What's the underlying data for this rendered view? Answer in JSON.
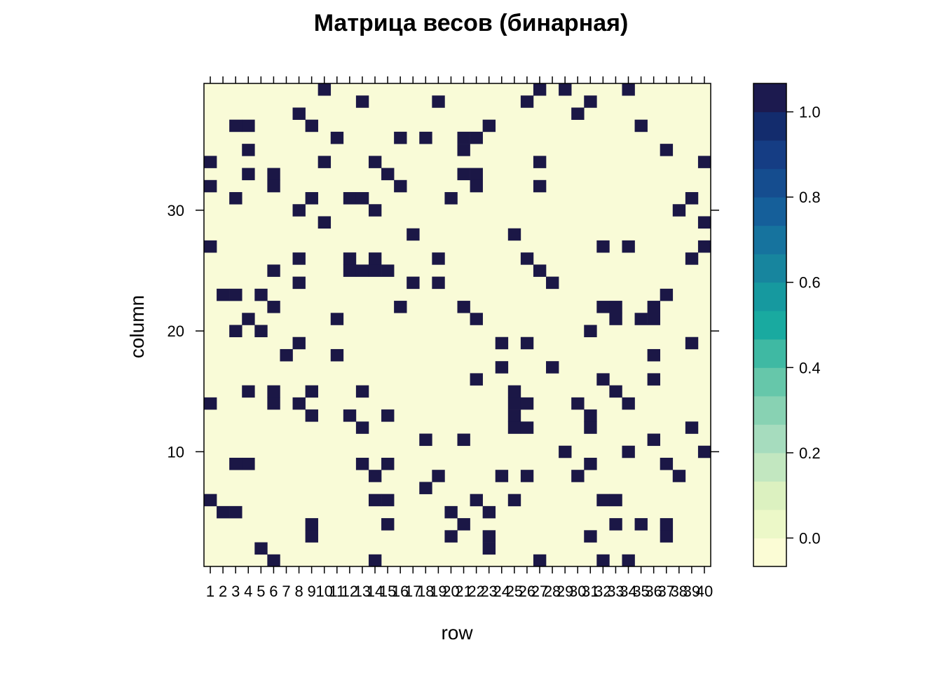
{
  "chart_data": {
    "type": "heatmap",
    "title": "Матрица весов (бинарная)",
    "xlabel": "row",
    "ylabel": "column",
    "n_rows": 40,
    "n_cols": 40,
    "x_ticks": [
      1,
      2,
      3,
      4,
      5,
      6,
      7,
      8,
      9,
      10,
      11,
      12,
      13,
      14,
      15,
      16,
      17,
      18,
      19,
      20,
      21,
      22,
      23,
      24,
      25,
      26,
      27,
      28,
      29,
      30,
      31,
      32,
      33,
      34,
      35,
      36,
      37,
      38,
      39,
      40
    ],
    "y_ticks": [
      10,
      20,
      30
    ],
    "colorbar": {
      "min": -0.0667,
      "max": 1.0667,
      "ticks": [
        0.0,
        0.2,
        0.4,
        0.6,
        0.8,
        1.0
      ],
      "tick_labels": [
        "0.0",
        "0.2",
        "0.4",
        "0.6",
        "0.8",
        "1.0"
      ],
      "colors": [
        "#fbfcd5",
        "#ecf8c8",
        "#dcf1c0",
        "#c2e7c0",
        "#a6dcbe",
        "#88d2b3",
        "#66c7aa",
        "#3fb9a3",
        "#19aaa0",
        "#16999f",
        "#17859e",
        "#16739e",
        "#155f9a",
        "#154d8f",
        "#153d84",
        "#132c6d",
        "#1c1a4f"
      ]
    },
    "cell_colors": {
      "zero": "#f9fbd7",
      "one": "#1b1746"
    },
    "nonzero_cells": [
      [
        10,
        40
      ],
      [
        27,
        40
      ],
      [
        29,
        40
      ],
      [
        34,
        40
      ],
      [
        13,
        39
      ],
      [
        19,
        39
      ],
      [
        26,
        39
      ],
      [
        31,
        39
      ],
      [
        8,
        38
      ],
      [
        30,
        38
      ],
      [
        3,
        37
      ],
      [
        4,
        37
      ],
      [
        9,
        37
      ],
      [
        23,
        37
      ],
      [
        35,
        37
      ],
      [
        11,
        36
      ],
      [
        16,
        36
      ],
      [
        18,
        36
      ],
      [
        21,
        36
      ],
      [
        22,
        36
      ],
      [
        4,
        35
      ],
      [
        21,
        35
      ],
      [
        37,
        35
      ],
      [
        1,
        34
      ],
      [
        10,
        34
      ],
      [
        14,
        34
      ],
      [
        27,
        34
      ],
      [
        40,
        34
      ],
      [
        4,
        33
      ],
      [
        6,
        33
      ],
      [
        15,
        33
      ],
      [
        21,
        33
      ],
      [
        22,
        33
      ],
      [
        1,
        32
      ],
      [
        6,
        32
      ],
      [
        16,
        32
      ],
      [
        22,
        32
      ],
      [
        27,
        32
      ],
      [
        3,
        31
      ],
      [
        9,
        31
      ],
      [
        12,
        31
      ],
      [
        13,
        31
      ],
      [
        20,
        31
      ],
      [
        39,
        31
      ],
      [
        8,
        30
      ],
      [
        14,
        30
      ],
      [
        38,
        30
      ],
      [
        10,
        29
      ],
      [
        40,
        29
      ],
      [
        17,
        28
      ],
      [
        25,
        28
      ],
      [
        1,
        27
      ],
      [
        32,
        27
      ],
      [
        34,
        27
      ],
      [
        40,
        27
      ],
      [
        8,
        26
      ],
      [
        12,
        26
      ],
      [
        14,
        26
      ],
      [
        19,
        26
      ],
      [
        26,
        26
      ],
      [
        39,
        26
      ],
      [
        6,
        25
      ],
      [
        12,
        25
      ],
      [
        13,
        25
      ],
      [
        14,
        25
      ],
      [
        15,
        25
      ],
      [
        27,
        25
      ],
      [
        8,
        24
      ],
      [
        17,
        24
      ],
      [
        19,
        24
      ],
      [
        28,
        24
      ],
      [
        2,
        23
      ],
      [
        3,
        23
      ],
      [
        5,
        23
      ],
      [
        37,
        23
      ],
      [
        6,
        22
      ],
      [
        16,
        22
      ],
      [
        21,
        22
      ],
      [
        32,
        22
      ],
      [
        33,
        22
      ],
      [
        36,
        22
      ],
      [
        4,
        21
      ],
      [
        11,
        21
      ],
      [
        22,
        21
      ],
      [
        33,
        21
      ],
      [
        35,
        21
      ],
      [
        36,
        21
      ],
      [
        3,
        20
      ],
      [
        5,
        20
      ],
      [
        31,
        20
      ],
      [
        8,
        19
      ],
      [
        24,
        19
      ],
      [
        26,
        19
      ],
      [
        39,
        19
      ],
      [
        7,
        18
      ],
      [
        11,
        18
      ],
      [
        36,
        18
      ],
      [
        24,
        17
      ],
      [
        28,
        17
      ],
      [
        22,
        16
      ],
      [
        32,
        16
      ],
      [
        36,
        16
      ],
      [
        4,
        15
      ],
      [
        6,
        15
      ],
      [
        9,
        15
      ],
      [
        13,
        15
      ],
      [
        25,
        15
      ],
      [
        33,
        15
      ],
      [
        1,
        14
      ],
      [
        6,
        14
      ],
      [
        8,
        14
      ],
      [
        25,
        14
      ],
      [
        26,
        14
      ],
      [
        30,
        14
      ],
      [
        34,
        14
      ],
      [
        9,
        13
      ],
      [
        12,
        13
      ],
      [
        15,
        13
      ],
      [
        25,
        13
      ],
      [
        31,
        13
      ],
      [
        13,
        12
      ],
      [
        25,
        12
      ],
      [
        26,
        12
      ],
      [
        31,
        12
      ],
      [
        39,
        12
      ],
      [
        18,
        11
      ],
      [
        21,
        11
      ],
      [
        36,
        11
      ],
      [
        29,
        10
      ],
      [
        34,
        10
      ],
      [
        40,
        10
      ],
      [
        3,
        9
      ],
      [
        4,
        9
      ],
      [
        13,
        9
      ],
      [
        15,
        9
      ],
      [
        31,
        9
      ],
      [
        37,
        9
      ],
      [
        14,
        8
      ],
      [
        19,
        8
      ],
      [
        24,
        8
      ],
      [
        26,
        8
      ],
      [
        30,
        8
      ],
      [
        38,
        8
      ],
      [
        18,
        7
      ],
      [
        1,
        6
      ],
      [
        14,
        6
      ],
      [
        15,
        6
      ],
      [
        22,
        6
      ],
      [
        25,
        6
      ],
      [
        32,
        6
      ],
      [
        33,
        6
      ],
      [
        2,
        5
      ],
      [
        3,
        5
      ],
      [
        20,
        5
      ],
      [
        23,
        5
      ],
      [
        9,
        4
      ],
      [
        15,
        4
      ],
      [
        21,
        4
      ],
      [
        33,
        4
      ],
      [
        35,
        4
      ],
      [
        37,
        4
      ],
      [
        9,
        3
      ],
      [
        20,
        3
      ],
      [
        23,
        3
      ],
      [
        31,
        3
      ],
      [
        37,
        3
      ],
      [
        5,
        2
      ],
      [
        23,
        2
      ],
      [
        6,
        1
      ],
      [
        14,
        1
      ],
      [
        27,
        1
      ],
      [
        32,
        1
      ],
      [
        34,
        1
      ]
    ]
  }
}
